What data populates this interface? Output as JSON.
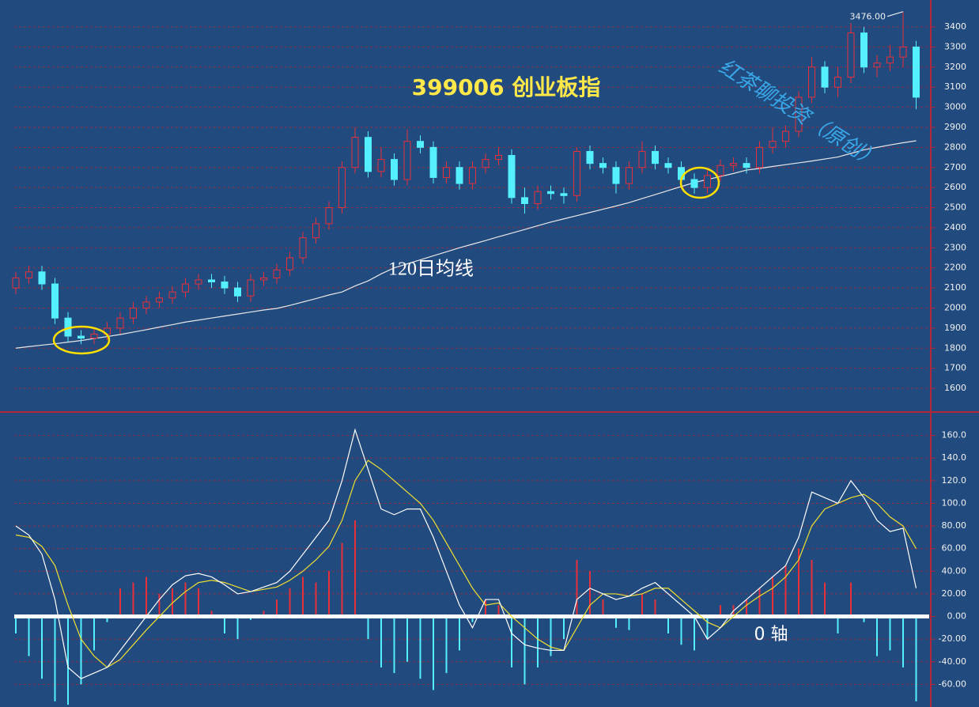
{
  "chart_data": [
    {
      "type": "candlestick",
      "title": "399006 创业板指",
      "watermark": "红茶聊投资（原创）",
      "up_color": "#e8303a",
      "down_color": "#54f0ff",
      "open": [
        2100,
        2150,
        2180,
        2120,
        1950,
        1860,
        1850,
        1870,
        1900,
        1950,
        2000,
        2030,
        2050,
        2080,
        2120,
        2140,
        2130,
        2100,
        2060,
        2140,
        2150,
        2190,
        2250,
        2350,
        2420,
        2500,
        2700,
        2850,
        2680,
        2740,
        2640,
        2830,
        2800,
        2650,
        2700,
        2620,
        2700,
        2740,
        2760,
        2550,
        2520,
        2580,
        2570,
        2560,
        2780,
        2720,
        2700,
        2620,
        2700,
        2780,
        2720,
        2700,
        2640,
        2600,
        2660,
        2710,
        2720,
        2700,
        2800,
        2830,
        2880,
        3050,
        3200,
        3100,
        3150,
        3370,
        3200,
        3220,
        3250,
        3300
      ],
      "high": [
        2180,
        2210,
        2210,
        2150,
        1980,
        1890,
        1900,
        1930,
        1980,
        2030,
        2060,
        2080,
        2110,
        2150,
        2170,
        2170,
        2160,
        2130,
        2170,
        2180,
        2220,
        2280,
        2380,
        2450,
        2530,
        2730,
        2900,
        2880,
        2800,
        2770,
        2890,
        2860,
        2830,
        2730,
        2730,
        2730,
        2770,
        2800,
        2790,
        2600,
        2610,
        2610,
        2600,
        2800,
        2810,
        2750,
        2730,
        2730,
        2830,
        2810,
        2750,
        2730,
        2670,
        2690,
        2740,
        2750,
        2750,
        2830,
        2900,
        2910,
        3080,
        3250,
        3230,
        3200,
        3420,
        3400,
        3260,
        3310,
        3476,
        3330
      ],
      "low": [
        2070,
        2120,
        2090,
        1920,
        1830,
        1820,
        1820,
        1840,
        1870,
        1920,
        1970,
        2000,
        2020,
        2050,
        2090,
        2100,
        2070,
        2030,
        2030,
        2110,
        2120,
        2160,
        2220,
        2320,
        2390,
        2470,
        2670,
        2650,
        2650,
        2610,
        2610,
        2770,
        2620,
        2620,
        2590,
        2590,
        2670,
        2710,
        2520,
        2470,
        2490,
        2540,
        2520,
        2530,
        2690,
        2670,
        2570,
        2590,
        2670,
        2690,
        2670,
        2610,
        2570,
        2570,
        2630,
        2680,
        2670,
        2670,
        2770,
        2800,
        2850,
        3020,
        3070,
        3050,
        3120,
        3170,
        3150,
        3180,
        3200,
        2990
      ],
      "close": [
        2150,
        2180,
        2120,
        1950,
        1860,
        1850,
        1870,
        1900,
        1950,
        2000,
        2030,
        2050,
        2080,
        2120,
        2140,
        2130,
        2100,
        2060,
        2140,
        2150,
        2190,
        2250,
        2350,
        2420,
        2500,
        2700,
        2850,
        2680,
        2740,
        2640,
        2830,
        2800,
        2650,
        2700,
        2620,
        2700,
        2740,
        2760,
        2550,
        2520,
        2580,
        2570,
        2560,
        2780,
        2720,
        2700,
        2620,
        2700,
        2780,
        2720,
        2700,
        2640,
        2600,
        2660,
        2710,
        2720,
        2700,
        2800,
        2830,
        2880,
        3050,
        3200,
        3100,
        3150,
        3370,
        3200,
        3220,
        3250,
        3300,
        3050
      ],
      "max_label": "3476.00",
      "ma": {
        "name": "120日均线",
        "color": "#e8e8e8",
        "values": [
          1800,
          1808,
          1815,
          1822,
          1830,
          1838,
          1848,
          1858,
          1868,
          1880,
          1892,
          1905,
          1917,
          1930,
          1940,
          1950,
          1960,
          1970,
          1980,
          1990,
          1998,
          2013,
          2030,
          2047,
          2065,
          2080,
          2110,
          2135,
          2170,
          2200,
          2220,
          2240,
          2260,
          2280,
          2300,
          2318,
          2336,
          2355,
          2373,
          2391,
          2410,
          2428,
          2444,
          2460,
          2476,
          2492,
          2508,
          2525,
          2545,
          2565,
          2585,
          2605,
          2625,
          2640,
          2655,
          2670,
          2687,
          2695,
          2705,
          2714,
          2723,
          2732,
          2742,
          2752,
          2770,
          2788,
          2800,
          2812,
          2823,
          2833
        ]
      },
      "ylim": [
        1486,
        3534
      ],
      "yticks": [
        1600,
        1700,
        1800,
        1900,
        2000,
        2100,
        2200,
        2300,
        2400,
        2500,
        2600,
        2700,
        2800,
        2900,
        3000,
        3100,
        3200,
        3300,
        3400
      ],
      "grid": true
    },
    {
      "type": "macd",
      "zero_label": "0 轴",
      "dif": {
        "color": "#ffffff",
        "values": [
          80,
          72,
          55,
          15,
          -45,
          -55,
          -50,
          -45,
          -30,
          -15,
          0,
          15,
          28,
          36,
          38,
          35,
          28,
          20,
          22,
          26,
          30,
          40,
          55,
          70,
          85,
          120,
          165,
          130,
          95,
          90,
          95,
          95,
          70,
          40,
          10,
          -10,
          15,
          15,
          -15,
          -25,
          -28,
          -30,
          -30,
          15,
          25,
          20,
          15,
          18,
          25,
          30,
          20,
          10,
          0,
          -20,
          -10,
          5,
          15,
          25,
          35,
          45,
          70,
          110,
          105,
          100,
          120,
          105,
          85,
          75,
          78,
          25
        ]
      },
      "dea": {
        "color": "#f0e030",
        "values": [
          72,
          70,
          62,
          45,
          10,
          -20,
          -35,
          -45,
          -38,
          -25,
          -12,
          0,
          12,
          22,
          30,
          32,
          30,
          26,
          22,
          24,
          26,
          32,
          40,
          50,
          62,
          85,
          120,
          138,
          130,
          120,
          110,
          100,
          85,
          65,
          45,
          25,
          10,
          12,
          0,
          -10,
          -20,
          -27,
          -30,
          -10,
          10,
          20,
          20,
          18,
          20,
          25,
          25,
          15,
          5,
          -5,
          -10,
          0,
          10,
          18,
          25,
          35,
          50,
          80,
          95,
          100,
          105,
          108,
          100,
          88,
          80,
          60
        ]
      },
      "histogram": {
        "up_color": "#e8303a",
        "down_color": "#54f0ff",
        "values": [
          -15,
          -35,
          -55,
          -75,
          -78,
          -60,
          -30,
          -5,
          25,
          30,
          35,
          20,
          25,
          30,
          25,
          5,
          -15,
          -20,
          -3,
          5,
          15,
          25,
          35,
          30,
          40,
          65,
          85,
          -20,
          -45,
          -50,
          -40,
          -55,
          -65,
          -50,
          -30,
          -5,
          15,
          10,
          -45,
          -60,
          -45,
          -35,
          -20,
          50,
          40,
          15,
          -10,
          -12,
          20,
          15,
          -15,
          -25,
          -30,
          -20,
          10,
          10,
          15,
          25,
          35,
          45,
          60,
          50,
          30,
          -15,
          30,
          -5,
          -35,
          -30,
          -45,
          -75
        ]
      },
      "ylim": [
        -80,
        180
      ],
      "yticks": [
        {
          "value": -60,
          "label": "-60.00"
        },
        {
          "value": -40,
          "label": "-40.00"
        },
        {
          "value": -20,
          "label": "-20.00"
        },
        {
          "value": 0,
          "label": "0.00"
        },
        {
          "value": 20,
          "label": "20.00"
        },
        {
          "value": 40,
          "label": "40.00"
        },
        {
          "value": 60,
          "label": "60.00"
        },
        {
          "value": 80,
          "label": "80.00"
        },
        {
          "value": 100,
          "label": "100.0"
        },
        {
          "value": 120,
          "label": "120.0"
        },
        {
          "value": 140,
          "label": "140.0"
        },
        {
          "value": 160,
          "label": "160.0"
        }
      ],
      "grid": true
    }
  ]
}
